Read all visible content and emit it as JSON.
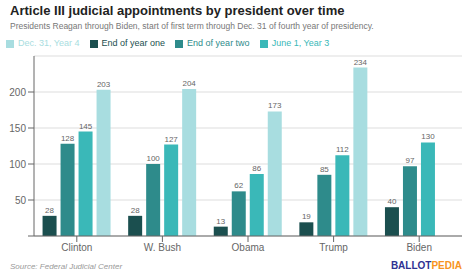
{
  "chart_data": {
    "type": "bar",
    "title": "Article III judicial appointments by president over time",
    "subtitle": "Presidents Reagan through Biden, start of first term through Dec. 31 of fourth year of presidency.",
    "annotations": [
      {
        "text": "Source: Federal Judicial Center"
      },
      {
        "text": "BALLOT",
        "color": "#2e3192"
      },
      {
        "text": "PEDIA",
        "color": "#f7941d"
      }
    ],
    "categories": [
      "Clinton",
      "W. Bush",
      "Obama",
      "Trump",
      "Biden"
    ],
    "series": [
      {
        "name": "End of year one",
        "color": "#1b4f4f",
        "values": [
          28,
          28,
          13,
          19,
          40
        ]
      },
      {
        "name": "End of year two",
        "color": "#2e8b8b",
        "values": [
          128,
          100,
          62,
          85,
          97
        ]
      },
      {
        "name": "June 1, Year 3",
        "color": "#3ab8b8",
        "values": [
          145,
          127,
          86,
          112,
          130
        ]
      },
      {
        "name": "Dec. 31, Year 4",
        "color": "#a8dde0",
        "values": [
          203,
          204,
          173,
          234,
          null
        ]
      }
    ],
    "ylim": [
      0,
      250
    ],
    "yticks": [
      {
        "value": 0,
        "label": ""
      },
      50,
      100,
      150,
      200
    ],
    "grid": true,
    "legend": "upper left",
    "data_labels": true
  }
}
